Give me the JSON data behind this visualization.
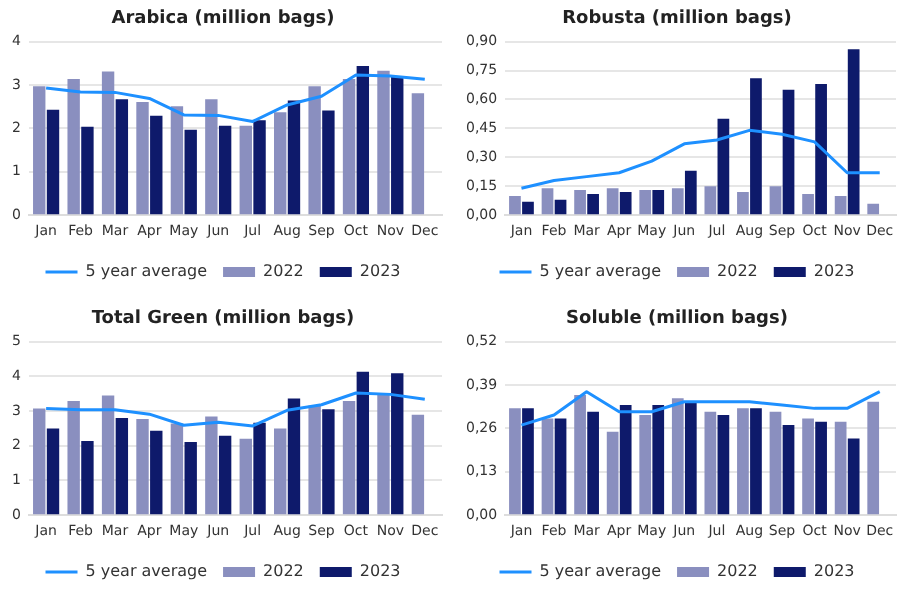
{
  "chart_data": [
    {
      "type": "bar",
      "title": "Arabica (million bags)",
      "categories": [
        "Jan",
        "Feb",
        "Mar",
        "Apr",
        "May",
        "Jun",
        "Jul",
        "Aug",
        "Sep",
        "Oct",
        "Nov",
        "Dec"
      ],
      "series": [
        {
          "name": "2022",
          "color": "#8a8fbf",
          "values": [
            2.97,
            3.14,
            3.31,
            2.61,
            2.51,
            2.67,
            2.06,
            2.37,
            2.97,
            3.14,
            3.33,
            2.81
          ]
        },
        {
          "name": "2023",
          "color": "#0e1a6b",
          "values": [
            2.43,
            2.04,
            2.67,
            2.29,
            1.97,
            2.06,
            2.19,
            2.64,
            2.41,
            3.44,
            3.19,
            null
          ]
        },
        {
          "name": "5 year average",
          "type": "line",
          "color": "#1e90ff",
          "marker": "none",
          "values": [
            2.93,
            2.84,
            2.83,
            2.69,
            2.31,
            2.3,
            2.16,
            2.54,
            2.74,
            3.23,
            3.21,
            3.13
          ]
        }
      ],
      "ylim": [
        0,
        4
      ],
      "yticks": [
        0,
        1,
        2,
        3,
        4
      ],
      "grid": "y",
      "legend": "bottom"
    },
    {
      "type": "bar",
      "title": "Robusta (million bags)",
      "categories": [
        "Jan",
        "Feb",
        "Mar",
        "Apr",
        "May",
        "Jun",
        "Jul",
        "Aug",
        "Sep",
        "Oct",
        "Nov",
        "Dec"
      ],
      "series": [
        {
          "name": "2022",
          "color": "#8a8fbf",
          "values": [
            0.1,
            0.14,
            0.13,
            0.14,
            0.13,
            0.14,
            0.15,
            0.12,
            0.15,
            0.11,
            0.1,
            0.06
          ]
        },
        {
          "name": "2023",
          "color": "#0e1a6b",
          "values": [
            0.07,
            0.08,
            0.11,
            0.12,
            0.13,
            0.23,
            0.5,
            0.71,
            0.65,
            0.68,
            0.86,
            null
          ]
        },
        {
          "name": "5 year average",
          "type": "line",
          "color": "#1e90ff",
          "marker": "none",
          "values": [
            0.14,
            0.18,
            0.2,
            0.22,
            0.28,
            0.37,
            0.39,
            0.44,
            0.42,
            0.38,
            0.22,
            0.22
          ]
        }
      ],
      "ylim": [
        0,
        0.9
      ],
      "yticks": [
        {
          "value": 0,
          "label": "0,00"
        },
        {
          "value": 0.15,
          "label": "0,15"
        },
        {
          "value": 0.3,
          "label": "0,30"
        },
        {
          "value": 0.45,
          "label": "0,45"
        },
        {
          "value": 0.6,
          "label": "0,60"
        },
        {
          "value": 0.75,
          "label": "0,75"
        },
        {
          "value": 0.9,
          "label": "0,90"
        }
      ],
      "grid": "y",
      "legend": "bottom"
    },
    {
      "type": "bar",
      "title": "Total Green (million bags)",
      "categories": [
        "Jan",
        "Feb",
        "Mar",
        "Apr",
        "May",
        "Jun",
        "Jul",
        "Aug",
        "Sep",
        "Oct",
        "Nov",
        "Dec"
      ],
      "series": [
        {
          "name": "2022",
          "color": "#8a8fbf",
          "values": [
            3.07,
            3.29,
            3.45,
            2.77,
            2.64,
            2.84,
            2.2,
            2.5,
            3.16,
            3.29,
            3.46,
            2.89
          ]
        },
        {
          "name": "2023",
          "color": "#0e1a6b",
          "values": [
            2.5,
            2.14,
            2.8,
            2.43,
            2.11,
            2.29,
            2.66,
            3.36,
            3.05,
            4.13,
            4.09,
            null
          ]
        },
        {
          "name": "5 year average",
          "type": "line",
          "color": "#1e90ff",
          "marker": "none",
          "values": [
            3.07,
            3.04,
            3.04,
            2.91,
            2.59,
            2.68,
            2.57,
            3.02,
            3.18,
            3.52,
            3.48,
            3.34
          ]
        }
      ],
      "ylim": [
        0,
        5
      ],
      "yticks": [
        0,
        1,
        2,
        3,
        4,
        5
      ],
      "grid": "y",
      "legend": "bottom"
    },
    {
      "type": "bar",
      "title": "Soluble (million bags)",
      "categories": [
        "Jan",
        "Feb",
        "Mar",
        "Apr",
        "May",
        "Jun",
        "Jul",
        "Aug",
        "Sep",
        "Oct",
        "Nov",
        "Dec"
      ],
      "series": [
        {
          "name": "2022",
          "color": "#8a8fbf",
          "values": [
            0.32,
            0.29,
            0.36,
            0.25,
            0.3,
            0.35,
            0.31,
            0.32,
            0.31,
            0.29,
            0.28,
            0.34
          ]
        },
        {
          "name": "2023",
          "color": "#0e1a6b",
          "values": [
            0.32,
            0.29,
            0.31,
            0.33,
            0.33,
            0.34,
            0.3,
            0.32,
            0.27,
            0.28,
            0.23,
            null
          ]
        },
        {
          "name": "5 year average",
          "type": "line",
          "color": "#1e90ff",
          "marker": "none",
          "values": [
            0.27,
            0.3,
            0.37,
            0.31,
            0.31,
            0.34,
            0.34,
            0.34,
            0.33,
            0.32,
            0.32,
            0.37
          ]
        }
      ],
      "ylim": [
        0,
        0.52
      ],
      "yticks": [
        {
          "value": 0,
          "label": "0,00"
        },
        {
          "value": 0.13,
          "label": "0,13"
        },
        {
          "value": 0.26,
          "label": "0,26"
        },
        {
          "value": 0.39,
          "label": "0,39"
        },
        {
          "value": 0.52,
          "label": "0,52"
        }
      ],
      "grid": "y",
      "legend": "bottom"
    }
  ]
}
